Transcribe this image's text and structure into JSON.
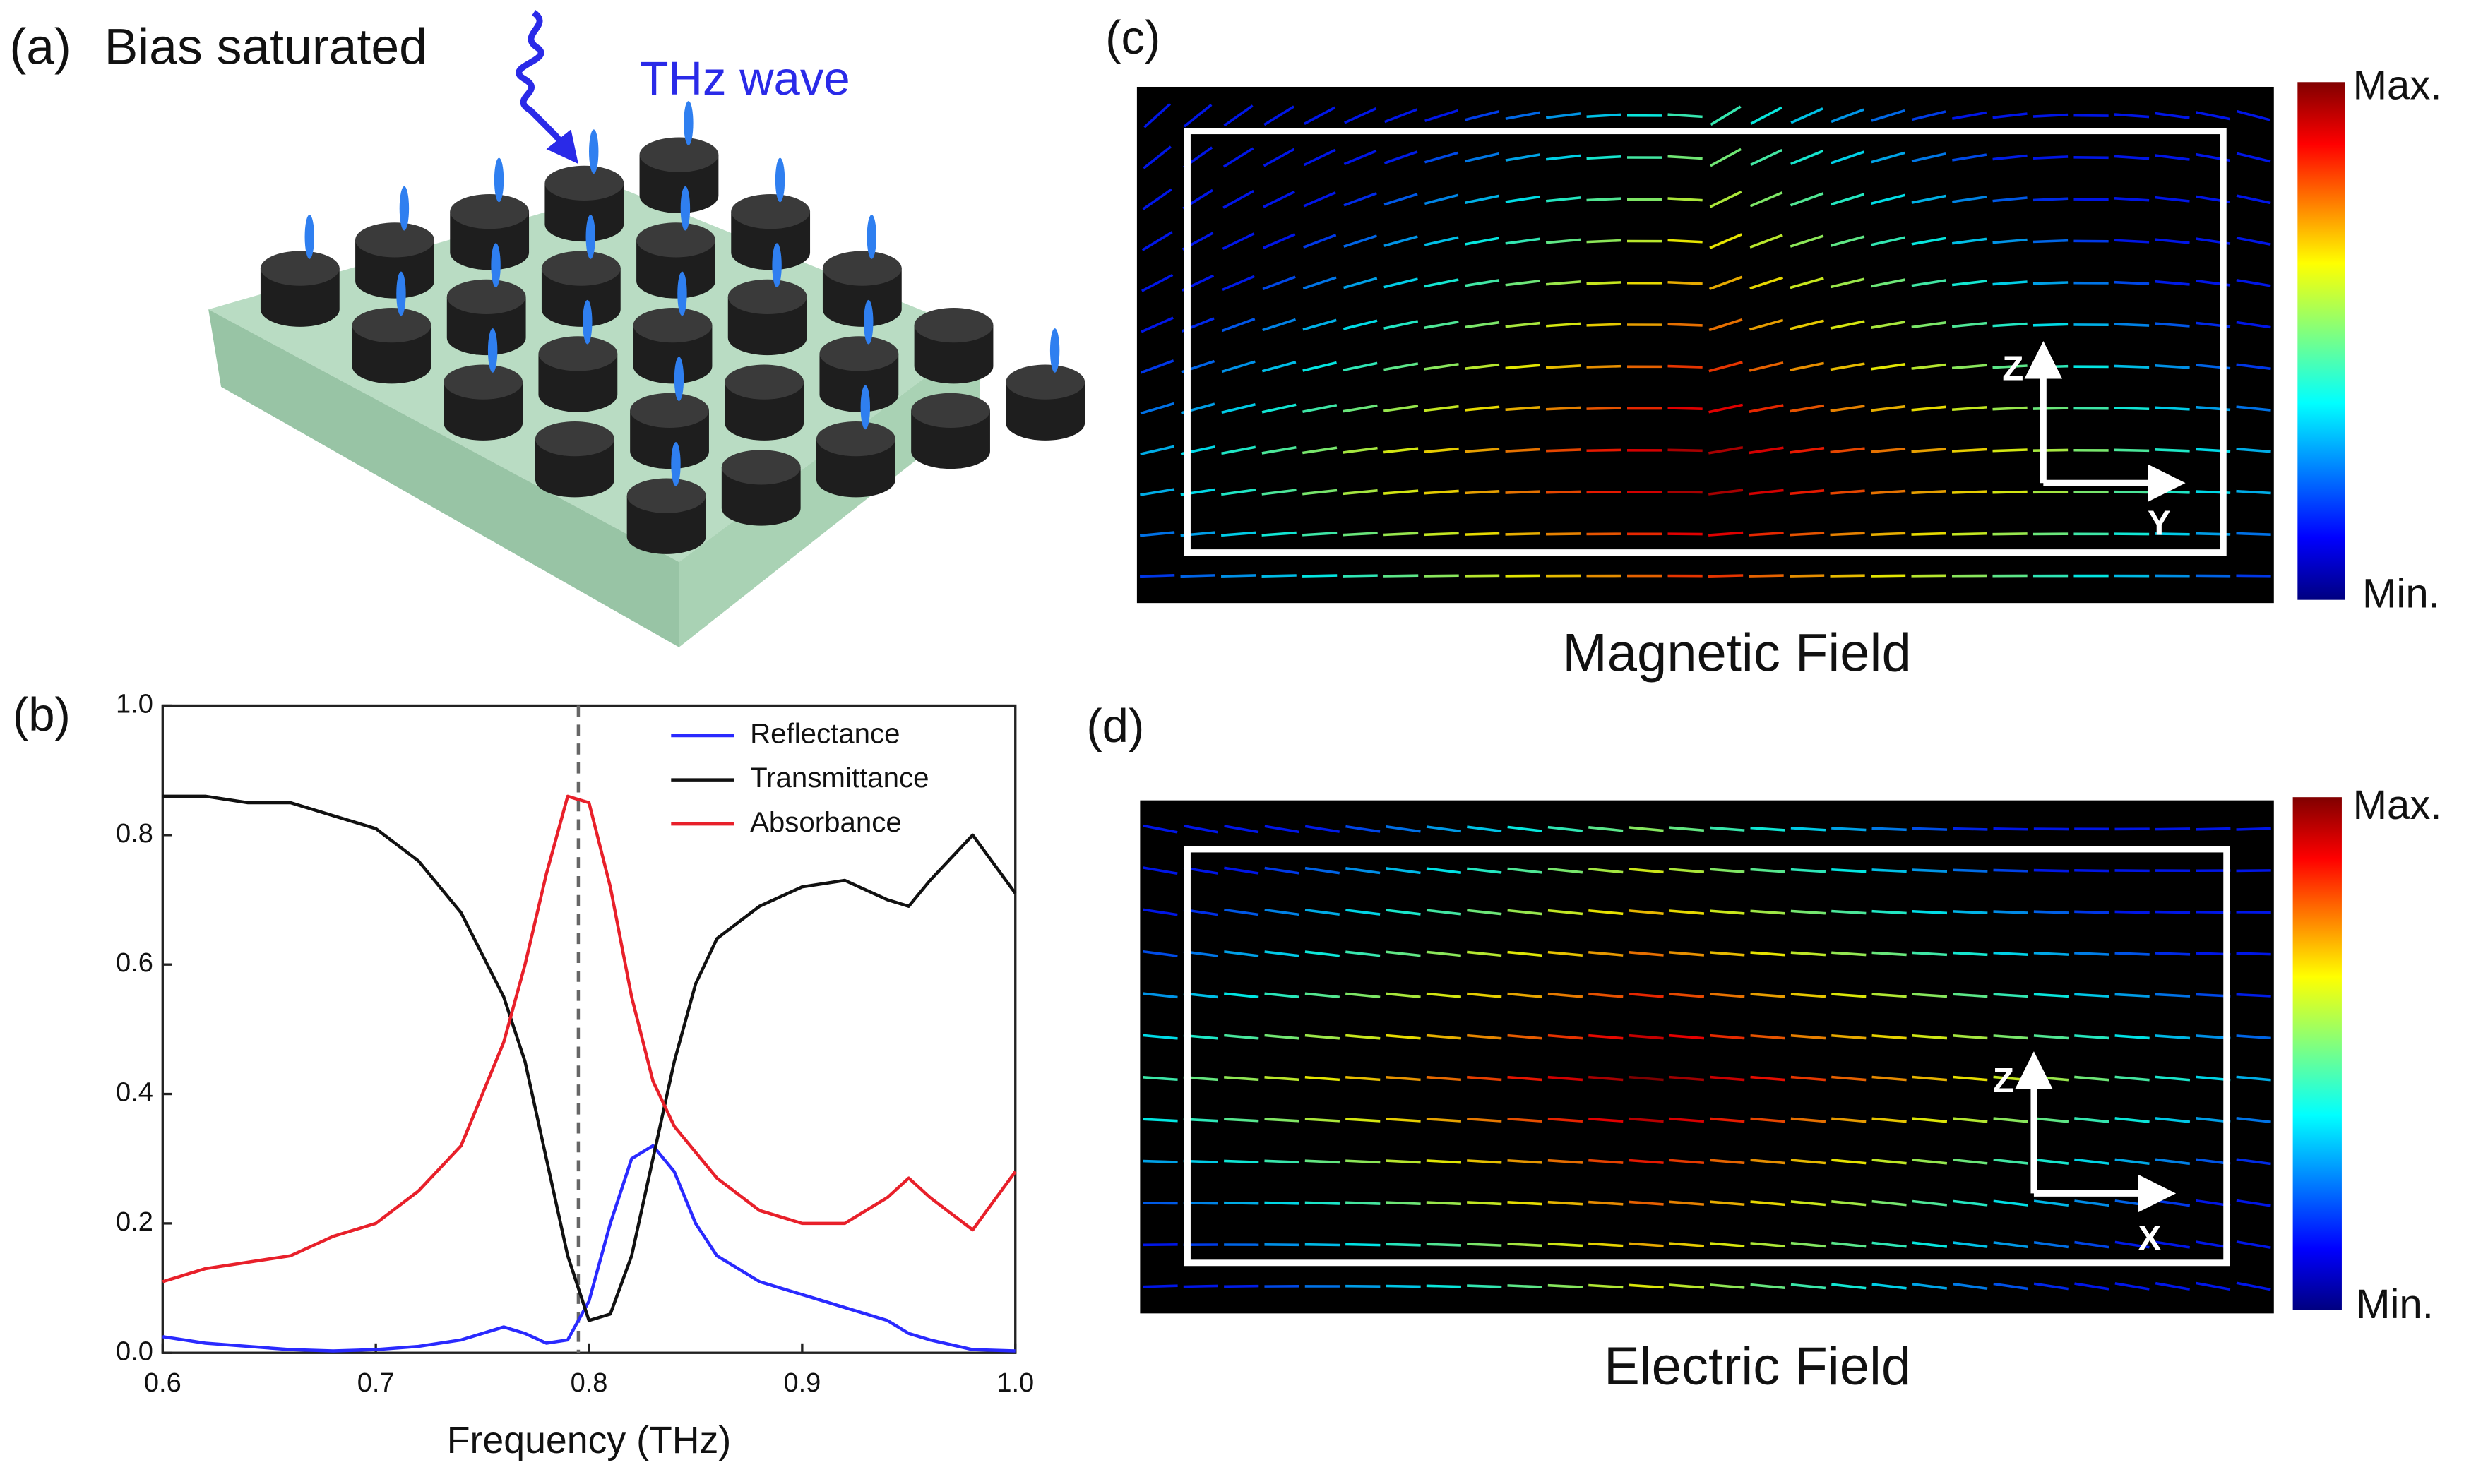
{
  "panel_a": {
    "label": "(a)",
    "title": "Bias saturated",
    "wave": "THz wave"
  },
  "panel_c": {
    "label": "(c)",
    "caption": "Magnetic Field",
    "max": "Max.",
    "min": "Min.",
    "axis_up": "Z",
    "axis_right": "Y"
  },
  "panel_d": {
    "label": "(d)",
    "caption": "Electric Field",
    "max": "Max.",
    "min": "Min.",
    "axis_up": "Z",
    "axis_right": "X"
  },
  "chart_data": {
    "type": "line",
    "panel_label": "(b)",
    "xlabel": "Frequency (THz)",
    "x": [
      0.6,
      0.62,
      0.64,
      0.66,
      0.68,
      0.7,
      0.72,
      0.74,
      0.76,
      0.77,
      0.78,
      0.79,
      0.8,
      0.81,
      0.82,
      0.83,
      0.84,
      0.85,
      0.86,
      0.88,
      0.9,
      0.92,
      0.94,
      0.95,
      0.96,
      0.98,
      1.0
    ],
    "series": [
      {
        "name": "Reflectance",
        "color": "#2a2aff",
        "values": [
          0.025,
          0.015,
          0.01,
          0.005,
          0.003,
          0.005,
          0.01,
          0.02,
          0.04,
          0.03,
          0.015,
          0.02,
          0.08,
          0.2,
          0.3,
          0.32,
          0.28,
          0.2,
          0.15,
          0.11,
          0.09,
          0.07,
          0.05,
          0.03,
          0.02,
          0.005,
          0.003
        ]
      },
      {
        "name": "Transmittance",
        "color": "#111111",
        "values": [
          0.86,
          0.86,
          0.85,
          0.85,
          0.83,
          0.81,
          0.76,
          0.68,
          0.55,
          0.45,
          0.3,
          0.15,
          0.05,
          0.06,
          0.15,
          0.3,
          0.45,
          0.57,
          0.64,
          0.69,
          0.72,
          0.73,
          0.7,
          0.69,
          0.73,
          0.8,
          0.71
        ]
      },
      {
        "name": "Absorbance",
        "color": "#e8202a",
        "values": [
          0.11,
          0.13,
          0.14,
          0.15,
          0.18,
          0.2,
          0.25,
          0.32,
          0.48,
          0.6,
          0.74,
          0.86,
          0.85,
          0.72,
          0.55,
          0.42,
          0.35,
          0.31,
          0.27,
          0.22,
          0.2,
          0.2,
          0.24,
          0.27,
          0.24,
          0.19,
          0.28
        ]
      }
    ],
    "vline": 0.795,
    "xlim": [
      0.6,
      1.0
    ],
    "xticks": [
      0.6,
      0.7,
      0.8,
      0.9,
      {
        "value": 1.0,
        "label": "1.0"
      }
    ],
    "ylim": [
      0.0,
      1.0
    ],
    "yticks": [
      {
        "value": 0.0,
        "label": "0.0"
      },
      0.2,
      0.4,
      0.6,
      0.8,
      {
        "value": 1.0,
        "label": "1.0"
      }
    ],
    "legend": "upper right"
  }
}
